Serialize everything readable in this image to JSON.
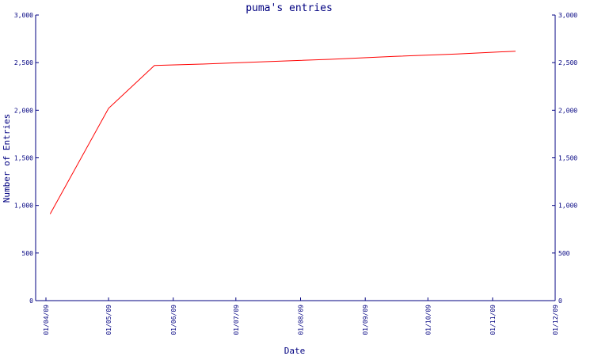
{
  "chart_data": {
    "type": "line",
    "title": "puma's entries",
    "xlabel": "Date",
    "ylabel": "Number of Entries",
    "x_ticks": [
      "01/04/09",
      "01/05/09",
      "01/06/09",
      "01/07/09",
      "01/08/09",
      "01/09/09",
      "01/10/09",
      "01/11/09",
      "01/12/09"
    ],
    "y_ticks": [
      "0",
      "500",
      "1,000",
      "1,500",
      "2,000",
      "2,500",
      "3,000"
    ],
    "ylim": [
      0,
      3000
    ],
    "grid": false,
    "series": [
      {
        "x": [
          "2009-04-03",
          "2009-05-01",
          "2009-05-23",
          "2009-06-15",
          "2009-07-15",
          "2009-08-15",
          "2009-09-15",
          "2009-10-15",
          "2009-11-12"
        ],
        "values": [
          910,
          2020,
          2470,
          2485,
          2510,
          2535,
          2565,
          2590,
          2620
        ]
      }
    ],
    "colors": {
      "axis": "#000080",
      "text": "#000080",
      "line": "#ff0000"
    }
  }
}
